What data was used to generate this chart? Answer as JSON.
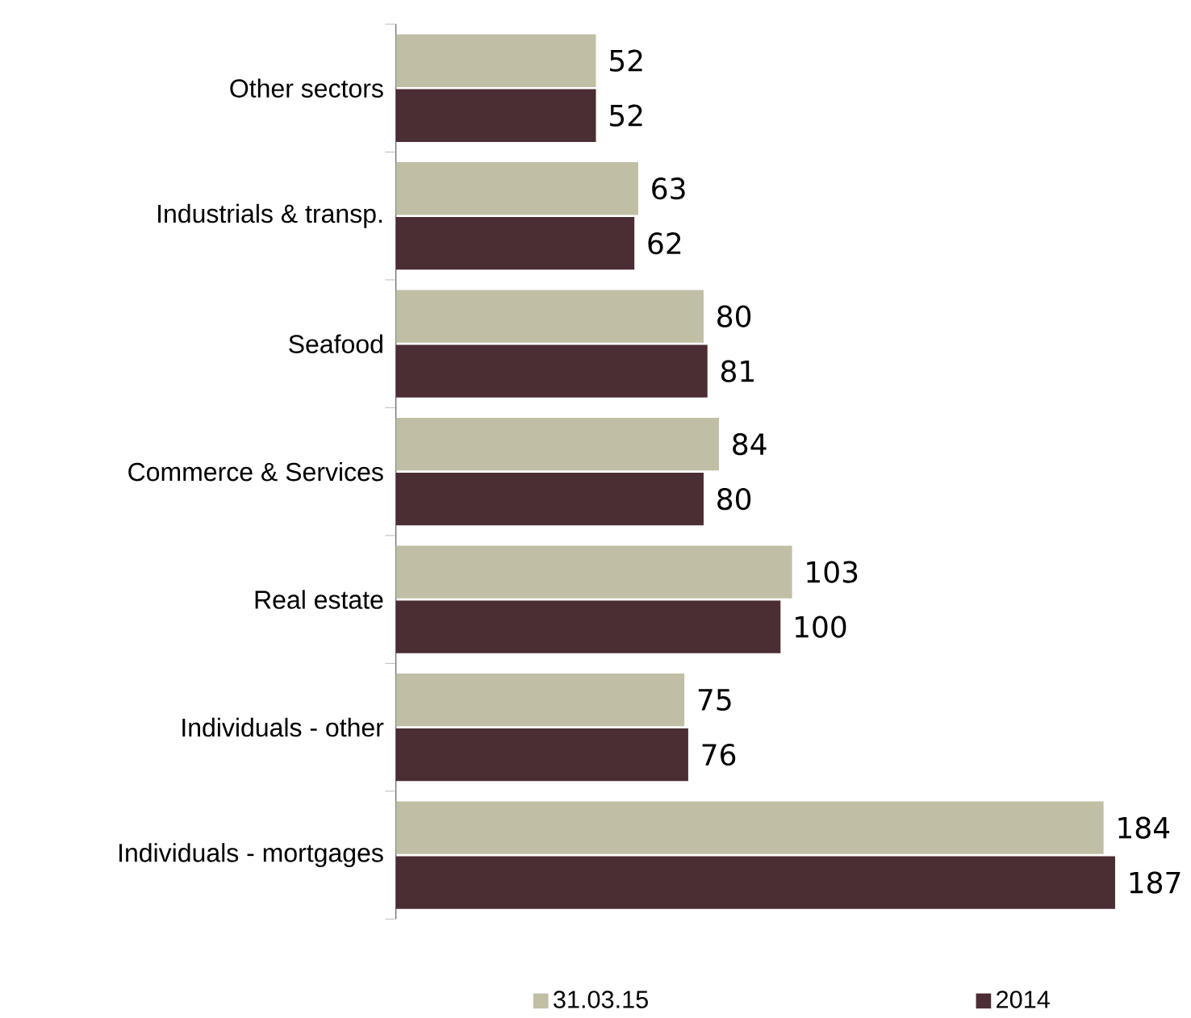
{
  "chart_data": {
    "type": "bar",
    "orientation": "horizontal",
    "categories": [
      "Other sectors",
      "Industrials & transp.",
      "Seafood",
      "Commerce & Services",
      "Real estate",
      "Individuals - other",
      "Individuals - mortgages"
    ],
    "series": [
      {
        "name": "31.03.15",
        "color": "#c0bfa5",
        "values": [
          52,
          63,
          80,
          84,
          103,
          75,
          184
        ]
      },
      {
        "name": "2014",
        "color": "#4b2d34",
        "values": [
          52,
          62,
          81,
          80,
          100,
          76,
          187
        ]
      }
    ],
    "data_labels": true,
    "legend": "bottom",
    "tick_labels": "y"
  }
}
